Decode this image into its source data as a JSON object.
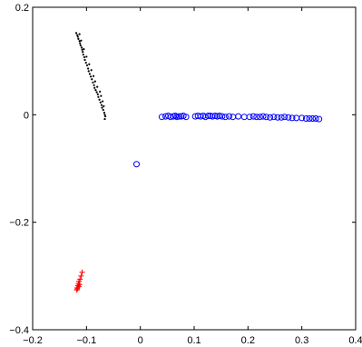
{
  "chart_data": {
    "type": "scatter",
    "xlim": [
      -0.2,
      0.4
    ],
    "ylim": [
      -0.4,
      0.2
    ],
    "grid": false,
    "x_ticks": [
      -0.2,
      -0.1,
      0,
      0.1,
      0.2,
      0.3,
      0.4
    ],
    "x_tick_labels": [
      "−0.2",
      "−0.1",
      "0",
      "0.1",
      "0.2",
      "0.3",
      "0.4"
    ],
    "y_ticks": [
      -0.4,
      -0.2,
      0,
      0.2
    ],
    "y_tick_labels": [
      "−0.4",
      "−0.2",
      "0",
      "0.2"
    ],
    "series": [
      {
        "marker": "dot",
        "color": "#000000",
        "points": [
          [
            -0.119,
            0.152
          ],
          [
            -0.117,
            0.148
          ],
          [
            -0.116,
            0.145
          ],
          [
            -0.115,
            0.141
          ],
          [
            -0.113,
            0.137
          ],
          [
            -0.112,
            0.133
          ],
          [
            -0.111,
            0.129
          ],
          [
            -0.109,
            0.125
          ],
          [
            -0.108,
            0.121
          ],
          [
            -0.107,
            0.117
          ],
          [
            -0.106,
            0.112
          ],
          [
            -0.104,
            0.107
          ],
          [
            -0.103,
            0.102
          ],
          [
            -0.101,
            0.097
          ],
          [
            -0.099,
            0.092
          ],
          [
            -0.097,
            0.086
          ],
          [
            -0.096,
            0.081
          ],
          [
            -0.094,
            0.076
          ],
          [
            -0.092,
            0.071
          ],
          [
            -0.09,
            0.066
          ],
          [
            -0.088,
            0.06
          ],
          [
            -0.086,
            0.055
          ],
          [
            -0.085,
            0.05
          ],
          [
            -0.083,
            0.046
          ],
          [
            -0.081,
            0.042
          ],
          [
            -0.079,
            0.038
          ],
          [
            -0.078,
            0.033
          ],
          [
            -0.076,
            0.028
          ],
          [
            -0.074,
            0.023
          ],
          [
            -0.072,
            0.018
          ],
          [
            -0.071,
            0.013
          ],
          [
            -0.069,
            0.009
          ],
          [
            -0.067,
            0.004
          ],
          [
            -0.066,
            0.0
          ],
          [
            -0.065,
            -0.003
          ],
          [
            -0.066,
            -0.008
          ],
          [
            -0.113,
            0.15
          ],
          [
            -0.11,
            0.138
          ],
          [
            -0.105,
            0.122
          ],
          [
            -0.1,
            0.108
          ],
          [
            -0.095,
            0.094
          ],
          [
            -0.091,
            0.083
          ],
          [
            -0.087,
            0.072
          ],
          [
            -0.084,
            0.062
          ],
          [
            -0.08,
            0.052
          ],
          [
            -0.075,
            0.043
          ],
          [
            -0.073,
            0.035
          ],
          [
            -0.07,
            0.025
          ],
          [
            -0.068,
            0.016
          ]
        ]
      },
      {
        "marker": "open-circle",
        "color": "#0000ff",
        "points": [
          [
            -0.007,
            -0.092
          ],
          [
            0.04,
            -0.004
          ],
          [
            0.047,
            -0.003
          ],
          [
            0.052,
            -0.002
          ],
          [
            0.056,
            -0.004
          ],
          [
            0.061,
            -0.003
          ],
          [
            0.065,
            -0.002
          ],
          [
            0.068,
            -0.004
          ],
          [
            0.072,
            -0.003
          ],
          [
            0.076,
            -0.003
          ],
          [
            0.08,
            -0.002
          ],
          [
            0.085,
            -0.004
          ],
          [
            0.102,
            -0.003
          ],
          [
            0.107,
            -0.002
          ],
          [
            0.112,
            -0.003
          ],
          [
            0.117,
            -0.002
          ],
          [
            0.121,
            -0.004
          ],
          [
            0.126,
            -0.002
          ],
          [
            0.13,
            -0.002
          ],
          [
            0.134,
            -0.003
          ],
          [
            0.139,
            -0.002
          ],
          [
            0.143,
            -0.003
          ],
          [
            0.147,
            -0.002
          ],
          [
            0.152,
            -0.003
          ],
          [
            0.158,
            -0.004
          ],
          [
            0.165,
            -0.003
          ],
          [
            0.172,
            -0.004
          ],
          [
            0.182,
            -0.003
          ],
          [
            0.193,
            -0.004
          ],
          [
            0.203,
            -0.004
          ],
          [
            0.21,
            -0.003
          ],
          [
            0.216,
            -0.004
          ],
          [
            0.222,
            -0.004
          ],
          [
            0.228,
            -0.003
          ],
          [
            0.234,
            -0.004
          ],
          [
            0.241,
            -0.005
          ],
          [
            0.248,
            -0.004
          ],
          [
            0.255,
            -0.005
          ],
          [
            0.262,
            -0.005
          ],
          [
            0.268,
            -0.004
          ],
          [
            0.275,
            -0.005
          ],
          [
            0.282,
            -0.006
          ],
          [
            0.29,
            -0.006
          ],
          [
            0.3,
            -0.006
          ],
          [
            0.308,
            -0.007
          ],
          [
            0.314,
            -0.007
          ],
          [
            0.32,
            -0.007
          ],
          [
            0.326,
            -0.007
          ],
          [
            0.332,
            -0.008
          ]
        ]
      },
      {
        "marker": "plus",
        "color": "#ff0000",
        "points": [
          [
            -0.118,
            -0.326
          ],
          [
            -0.117,
            -0.322
          ],
          [
            -0.116,
            -0.318
          ],
          [
            -0.115,
            -0.314
          ],
          [
            -0.114,
            -0.31
          ],
          [
            -0.112,
            -0.306
          ],
          [
            -0.11,
            -0.3
          ],
          [
            -0.108,
            -0.293
          ],
          [
            -0.117,
            -0.324
          ],
          [
            -0.114,
            -0.32
          ],
          [
            -0.113,
            -0.316
          ]
        ]
      }
    ]
  }
}
